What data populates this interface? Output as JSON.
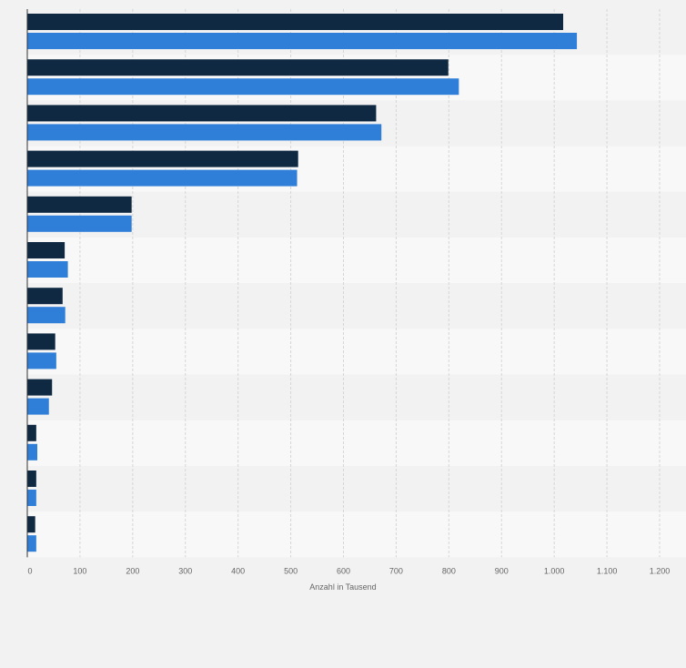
{
  "chart_data": {
    "type": "bar",
    "orientation": "horizontal",
    "xlabel": "Anzahl in Tausend",
    "xlim": [
      0,
      1200
    ],
    "x_ticks": [
      0,
      100,
      200,
      300,
      400,
      500,
      600,
      700,
      800,
      900,
      1000,
      1100,
      1200
    ],
    "x_tick_labels": [
      "0",
      "100",
      "200",
      "300",
      "400",
      "500",
      "600",
      "700",
      "800",
      "900",
      "1.000",
      "1.100",
      "1.200"
    ],
    "grid": true,
    "categories": [
      "",
      "",
      "",
      "",
      "",
      "",
      "",
      "",
      "",
      "",
      "",
      ""
    ],
    "series": [
      {
        "name": "",
        "color": "#0f2942",
        "values": [
          1017,
          799,
          662,
          514,
          198,
          71,
          67,
          53,
          47,
          17,
          17,
          15
        ]
      },
      {
        "name": "",
        "color": "#2f7ed8",
        "values": [
          1043,
          819,
          672,
          512,
          198,
          77,
          72,
          55,
          41,
          19,
          17,
          17
        ]
      }
    ]
  },
  "colors": {
    "page_background": "#f2f2f2",
    "band_odd": "#f2f2f2",
    "band_even": "#f8f8f8",
    "grid": "#d6d6d6",
    "axis": "#333333",
    "tick_text": "#666666"
  }
}
